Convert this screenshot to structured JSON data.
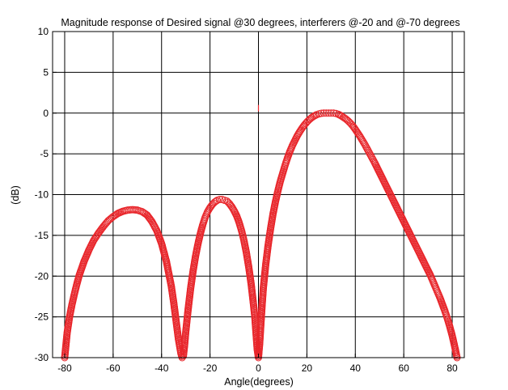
{
  "chart_data": {
    "type": "scatter",
    "title": "Magnitude response of Desired signal @30 degrees, interferers @-20 and @-70 degrees",
    "xlabel": "Angle(degrees)",
    "ylabel": "(dB)",
    "xlim": [
      -85,
      85
    ],
    "ylim": [
      -30,
      10
    ],
    "xticks": [
      -80,
      -60,
      -40,
      -20,
      0,
      20,
      40,
      60,
      80
    ],
    "yticks": [
      10,
      5,
      0,
      -5,
      -10,
      -15,
      -20,
      -25,
      -30
    ],
    "grid": true,
    "marker": "circle",
    "colors": {
      "series": "#e8262b",
      "axis": "#000000",
      "grid": "#000000",
      "background": "#ffffff"
    },
    "series": [
      {
        "values": [
          [
            -80,
            -30
          ],
          [
            -79.5,
            -28.5
          ],
          [
            -79,
            -27
          ],
          [
            -78,
            -25
          ],
          [
            -77,
            -23.5
          ],
          [
            -76,
            -22.2
          ],
          [
            -75,
            -21
          ],
          [
            -74,
            -19.9
          ],
          [
            -72,
            -18.2
          ],
          [
            -70,
            -16.8
          ],
          [
            -68,
            -15.6
          ],
          [
            -66,
            -14.7
          ],
          [
            -64,
            -13.9
          ],
          [
            -62,
            -13.2
          ],
          [
            -60,
            -12.7
          ],
          [
            -58,
            -12.3
          ],
          [
            -56,
            -12.05
          ],
          [
            -54,
            -11.9
          ],
          [
            -52,
            -11.85
          ],
          [
            -50,
            -11.9
          ],
          [
            -48,
            -12.1
          ],
          [
            -46,
            -12.5
          ],
          [
            -44,
            -13.3
          ],
          [
            -42,
            -14.4
          ],
          [
            -40,
            -16
          ],
          [
            -38,
            -18.2
          ],
          [
            -36,
            -21.2
          ],
          [
            -35,
            -23.2
          ],
          [
            -34,
            -25.5
          ],
          [
            -33,
            -27.8
          ],
          [
            -32,
            -29.5
          ],
          [
            -31.5,
            -30
          ],
          [
            -31,
            -29.8
          ],
          [
            -30.5,
            -28.5
          ],
          [
            -30,
            -26.8
          ],
          [
            -29,
            -24
          ],
          [
            -28,
            -21.5
          ],
          [
            -27,
            -19.4
          ],
          [
            -26,
            -17.6
          ],
          [
            -25,
            -16.1
          ],
          [
            -24,
            -14.8
          ],
          [
            -23,
            -13.7
          ],
          [
            -22,
            -12.8
          ],
          [
            -21,
            -12.1
          ],
          [
            -20,
            -11.6
          ],
          [
            -19,
            -11.2
          ],
          [
            -18,
            -10.9
          ],
          [
            -17,
            -10.7
          ],
          [
            -16,
            -10.6
          ],
          [
            -15,
            -10.6
          ],
          [
            -14,
            -10.7
          ],
          [
            -13,
            -10.8
          ],
          [
            -12,
            -11.1
          ],
          [
            -11,
            -11.5
          ],
          [
            -10,
            -12
          ],
          [
            -9,
            -12.6
          ],
          [
            -8,
            -13.4
          ],
          [
            -7,
            -14.4
          ],
          [
            -6,
            -15.6
          ],
          [
            -5,
            -17.1
          ],
          [
            -4,
            -18.9
          ],
          [
            -3,
            -21
          ],
          [
            -2,
            -23.6
          ],
          [
            -1.5,
            -25
          ],
          [
            -1,
            -27
          ],
          [
            -0.5,
            -29
          ],
          [
            0,
            -30
          ],
          [
            0.5,
            -28.3
          ],
          [
            1,
            -25.9
          ],
          [
            1.5,
            -23.6
          ],
          [
            2,
            -21.5
          ],
          [
            3,
            -18.6
          ],
          [
            4,
            -16.2
          ],
          [
            5,
            -14.2
          ],
          [
            6,
            -12.4
          ],
          [
            7,
            -10.9
          ],
          [
            8,
            -9.6
          ],
          [
            9,
            -8.4
          ],
          [
            10,
            -7.4
          ],
          [
            11,
            -6.4
          ],
          [
            12,
            -5.5
          ],
          [
            13,
            -4.7
          ],
          [
            14,
            -4
          ],
          [
            15,
            -3.4
          ],
          [
            16,
            -2.8
          ],
          [
            17,
            -2.3
          ],
          [
            18,
            -1.85
          ],
          [
            19,
            -1.45
          ],
          [
            20,
            -1.1
          ],
          [
            21,
            -0.8
          ],
          [
            22,
            -0.55
          ],
          [
            23,
            -0.35
          ],
          [
            24,
            -0.2
          ],
          [
            25,
            -0.1
          ],
          [
            26,
            -0.03
          ],
          [
            27,
            0
          ],
          [
            28,
            0
          ],
          [
            29,
            0
          ],
          [
            30,
            0
          ],
          [
            31,
            0
          ],
          [
            32,
            -0.05
          ],
          [
            33,
            -0.15
          ],
          [
            34,
            -0.3
          ],
          [
            35,
            -0.5
          ],
          [
            36,
            -0.7
          ],
          [
            37,
            -0.95
          ],
          [
            38,
            -1.25
          ],
          [
            39,
            -1.6
          ],
          [
            40,
            -2
          ],
          [
            41,
            -2.45
          ],
          [
            42,
            -2.9
          ],
          [
            43,
            -3.4
          ],
          [
            44,
            -3.9
          ],
          [
            45,
            -4.45
          ],
          [
            46,
            -5
          ],
          [
            47,
            -5.55
          ],
          [
            48,
            -6.1
          ],
          [
            49,
            -6.7
          ],
          [
            50,
            -7.3
          ],
          [
            51,
            -7.9
          ],
          [
            52,
            -8.5
          ],
          [
            53,
            -9.1
          ],
          [
            54,
            -9.7
          ],
          [
            55,
            -10.3
          ],
          [
            56,
            -10.9
          ],
          [
            57,
            -11.5
          ],
          [
            58,
            -12.1
          ],
          [
            59,
            -12.7
          ],
          [
            60,
            -13.3
          ],
          [
            61,
            -13.9
          ],
          [
            62,
            -14.5
          ],
          [
            63,
            -15.1
          ],
          [
            64,
            -15.7
          ],
          [
            65,
            -16.3
          ],
          [
            66,
            -16.9
          ],
          [
            67,
            -17.5
          ],
          [
            68,
            -18.1
          ],
          [
            69,
            -18.7
          ],
          [
            70,
            -19.3
          ],
          [
            71,
            -19.9
          ],
          [
            72,
            -20.6
          ],
          [
            73,
            -21.3
          ],
          [
            74,
            -22
          ],
          [
            75,
            -22.7
          ],
          [
            76,
            -23.5
          ],
          [
            77,
            -24.3
          ],
          [
            78,
            -25.2
          ],
          [
            79,
            -26.2
          ],
          [
            80,
            -27.3
          ],
          [
            81,
            -28.6
          ],
          [
            82,
            -30
          ]
        ]
      }
    ]
  }
}
